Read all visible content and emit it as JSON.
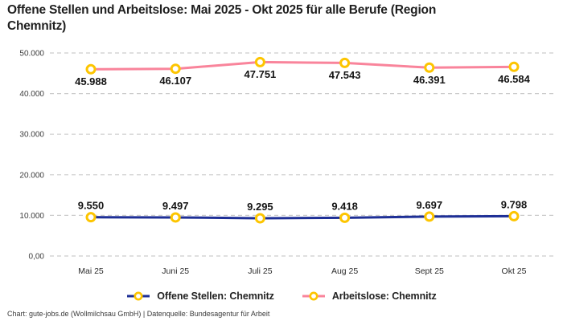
{
  "title": "Offene Stellen und Arbeitslose: Mai 2025 - Okt 2025 für alle Berufe (Region Chemnitz)",
  "footer": "Chart: gute-jobs.de (Wollmilchsau GmbH) | Datenquelle: Bundesagentur für Arbeit",
  "colors": {
    "offene_stellen_line": "#1e2f96",
    "arbeitslose_line": "#f9849b",
    "marker_ring": "#fdc500",
    "marker_fill": "#ffffff",
    "gridline": "#cccccc",
    "axis_text": "#3d3d3d",
    "data_label": "#141414"
  },
  "chart_data": {
    "type": "line",
    "title": "Offene Stellen und Arbeitslose: Mai 2025 - Okt 2025 für alle Berufe (Region Chemnitz)",
    "categories": [
      "Mai 25",
      "Juni 25",
      "Juli 25",
      "Aug 25",
      "Sept 25",
      "Okt 25"
    ],
    "series": [
      {
        "name": "Offene Stellen: Chemnitz",
        "color": "#1e2f96",
        "values": [
          9550,
          9497,
          9295,
          9418,
          9697,
          9798
        ],
        "labels": [
          "9.550",
          "9.497",
          "9.295",
          "9.418",
          "9.697",
          "9.798"
        ],
        "label_position": "above"
      },
      {
        "name": "Arbeitslose: Chemnitz",
        "color": "#f9849b",
        "values": [
          45988,
          46107,
          47751,
          47543,
          46391,
          46584
        ],
        "labels": [
          "45.988",
          "46.107",
          "47.751",
          "47.543",
          "46.391",
          "46.584"
        ],
        "label_position": "below"
      }
    ],
    "y_ticks": [
      {
        "value": 0,
        "label": "0,00"
      },
      {
        "value": 10000,
        "label": "10.000"
      },
      {
        "value": 20000,
        "label": "20.000"
      },
      {
        "value": 30000,
        "label": "30.000"
      },
      {
        "value": 40000,
        "label": "40.000"
      },
      {
        "value": 50000,
        "label": "50.000"
      }
    ],
    "ylim": [
      0,
      50000
    ],
    "xlabel": "",
    "ylabel": "",
    "grid": "dashed-horizontal",
    "legend_position": "bottom"
  }
}
